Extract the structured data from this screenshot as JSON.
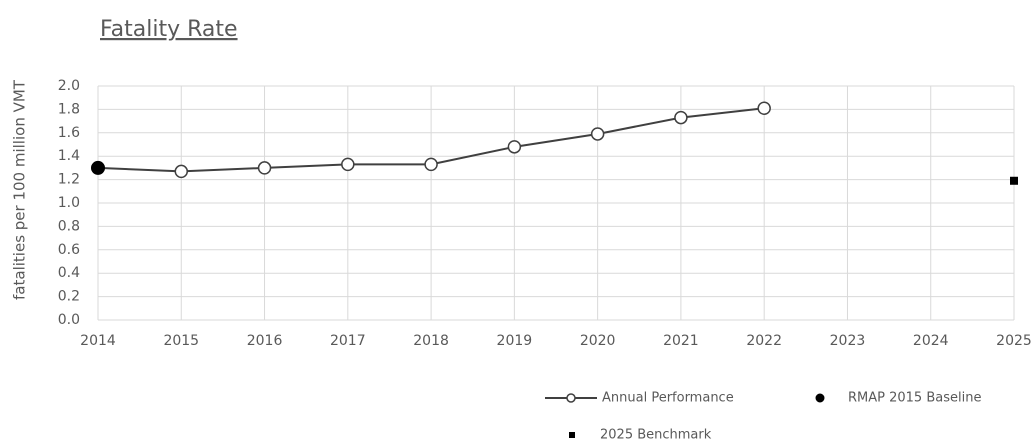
{
  "chart_data": {
    "type": "line",
    "title": "Fatality Rate",
    "y_label": "fatalities per 100 million VMT",
    "xlim": [
      2014,
      2025
    ],
    "xticks": [
      2014,
      2015,
      2016,
      2017,
      2018,
      2019,
      2020,
      2021,
      2022,
      2023,
      2024,
      2025
    ],
    "ylim": [
      0,
      2
    ],
    "yticks": [
      {
        "value": 0,
        "label": "0.0"
      },
      0.2,
      0.4,
      0.6,
      0.8,
      {
        "value": 1,
        "label": "1.0"
      },
      1.2,
      1.4,
      1.6,
      1.8,
      {
        "value": 2,
        "label": "2.0"
      }
    ],
    "grid": true,
    "legend": "bottom",
    "series": [
      {
        "name": "Annual Performance",
        "color": "#404040",
        "marker": "circle-open",
        "line": true,
        "x": [
          2014,
          2015,
          2016,
          2017,
          2018,
          2019,
          2020,
          2021,
          2022
        ],
        "values": [
          1.3,
          1.27,
          1.3,
          1.33,
          1.33,
          1.48,
          1.59,
          1.73,
          1.81
        ]
      },
      {
        "name": "RMAP 2015 Baseline",
        "color": "#000000",
        "marker": "circle",
        "line": false,
        "x": [
          2014
        ],
        "values": [
          1.3
        ]
      },
      {
        "name": "2025 Benchmark",
        "color": "#000000",
        "marker": "square",
        "line": false,
        "x": [
          2025
        ],
        "values": [
          1.19
        ]
      }
    ]
  }
}
